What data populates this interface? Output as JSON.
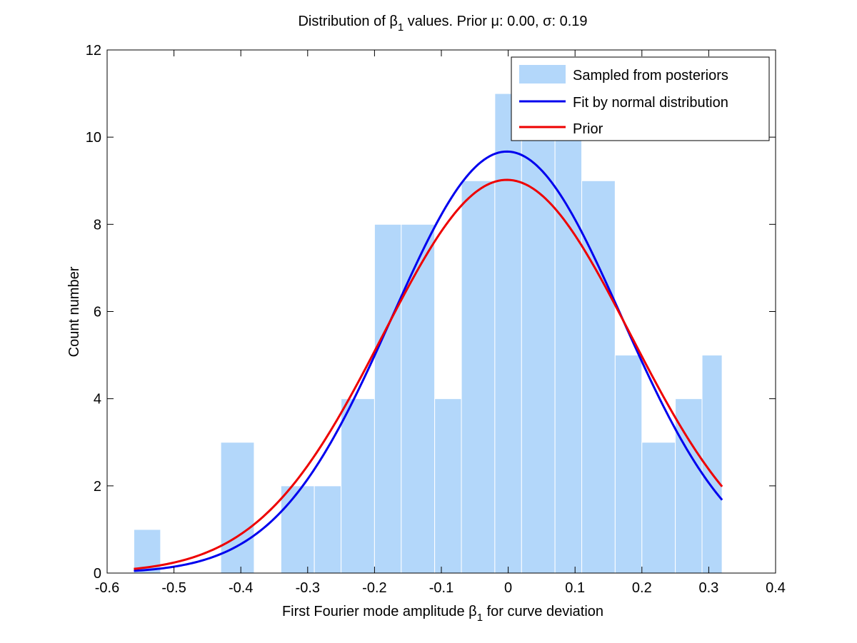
{
  "chart_data": {
    "type": "bar",
    "title_main": "Distribution of ",
    "title_beta": "β",
    "title_sub": "1",
    "title_rest": " values. Prior μ: 0.00, σ: 0.19",
    "xlabel_main": "First Fourier mode amplitude ",
    "xlabel_beta": "β",
    "xlabel_sub": "1",
    "xlabel_rest": " for curve deviation",
    "ylabel": "Count number",
    "xlim": [
      -0.6,
      0.4
    ],
    "ylim": [
      0,
      12
    ],
    "xticks": [
      -0.6,
      -0.5,
      -0.4,
      -0.3,
      -0.2,
      -0.1,
      0,
      0.1,
      0.2,
      0.3,
      0.4
    ],
    "xtick_labels": [
      "-0.6",
      "-0.5",
      "-0.4",
      "-0.3",
      "-0.2",
      "-0.1",
      "0",
      "0.1",
      "0.2",
      "0.3",
      "0.4"
    ],
    "yticks": [
      0,
      2,
      4,
      6,
      8,
      10,
      12
    ],
    "ytick_labels": [
      "0",
      "2",
      "4",
      "6",
      "8",
      "10",
      "12"
    ],
    "grid": false,
    "legend_position": "top-right",
    "histogram": {
      "name": "Sampled from posteriors",
      "color": "#b3d7fa",
      "bin_edges": [
        -0.56,
        -0.52,
        -0.47,
        -0.43,
        -0.38,
        -0.34,
        -0.29,
        -0.25,
        -0.2,
        -0.16,
        -0.11,
        -0.07,
        -0.02,
        0.02,
        0.07,
        0.11,
        0.16,
        0.2,
        0.25,
        0.29,
        0.32
      ],
      "counts": [
        1,
        0,
        0,
        3,
        0,
        2,
        2,
        4,
        8,
        8,
        4,
        9,
        11,
        10,
        10,
        9,
        5,
        3,
        4,
        5
      ]
    },
    "series": [
      {
        "name": "Fit by normal distribution",
        "color": "#0000ee",
        "mu": -0.002,
        "peak": 9.67,
        "sigma": 0.172
      },
      {
        "name": "Prior",
        "color": "#ee0000",
        "mu": -0.002,
        "peak": 9.02,
        "sigma": 0.185
      }
    ],
    "curve_x_range": [
      -0.56,
      0.32
    ]
  }
}
